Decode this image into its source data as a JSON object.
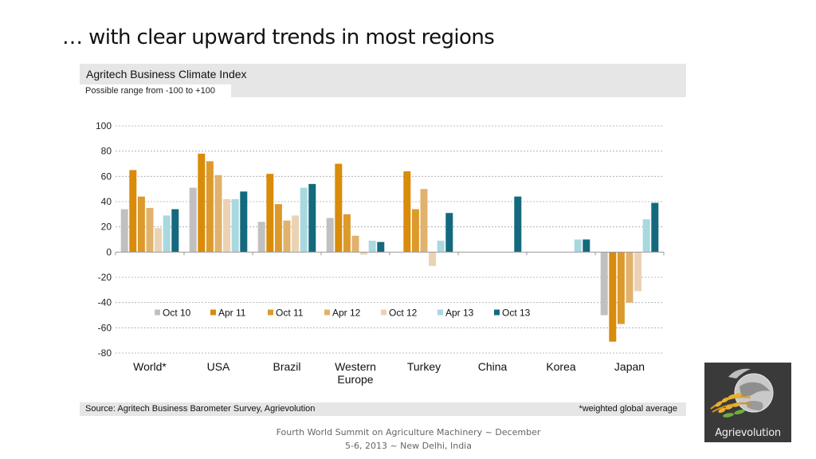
{
  "slide": {
    "title": "… with clear upward trends in most regions",
    "chart_title": "Agritech Business Climate Index",
    "chart_subtitle": "Possible range from -100 to +100",
    "source": "Source: Agritech Business Barometer Survey, Agrievolution",
    "footnote": "*weighted global average",
    "bottom_note": "Fourth World Summit on Agriculture Machinery ~ December 5-6, 2013 ~ New Delhi, India",
    "logo_text": "Agrievolution",
    "logo_icon": "globe-wheat-logo-icon"
  },
  "chart_data": {
    "type": "bar",
    "title": "Agritech Business Climate Index",
    "subtitle": "Possible range from -100 to +100",
    "xlabel": "",
    "ylabel": "",
    "ylim": [
      -80,
      100
    ],
    "yticks": [
      100,
      80,
      60,
      40,
      20,
      0,
      -20,
      -40,
      -60,
      -80
    ],
    "grid": true,
    "legend_position": "lower-center",
    "categories": [
      "World*",
      "USA",
      "Brazil",
      "Western Europe",
      "Turkey",
      "China",
      "Korea",
      "Japan"
    ],
    "series": [
      {
        "name": "Oct 10",
        "color": "#c0c0c0",
        "values": [
          34,
          51,
          24,
          27,
          null,
          null,
          null,
          -50
        ]
      },
      {
        "name": "Apr 11",
        "color": "#d98b0a",
        "values": [
          65,
          78,
          62,
          70,
          64,
          null,
          null,
          -71
        ]
      },
      {
        "name": "Oct 11",
        "color": "#dc9a2c",
        "values": [
          44,
          72,
          38,
          30,
          34,
          null,
          null,
          -57
        ]
      },
      {
        "name": "Apr 12",
        "color": "#e0b26c",
        "values": [
          35,
          61,
          25,
          13,
          50,
          null,
          null,
          -40
        ]
      },
      {
        "name": "Oct 12",
        "color": "#ebd2b4",
        "values": [
          19,
          42,
          29,
          -2,
          -11,
          null,
          null,
          -31
        ]
      },
      {
        "name": "Apr 13",
        "color": "#a8d8e0",
        "values": [
          29,
          42,
          51,
          9,
          9,
          null,
          10,
          26
        ]
      },
      {
        "name": "Oct 13",
        "color": "#14697e",
        "values": [
          34,
          48,
          54,
          8,
          31,
          44,
          10,
          39
        ]
      }
    ]
  }
}
